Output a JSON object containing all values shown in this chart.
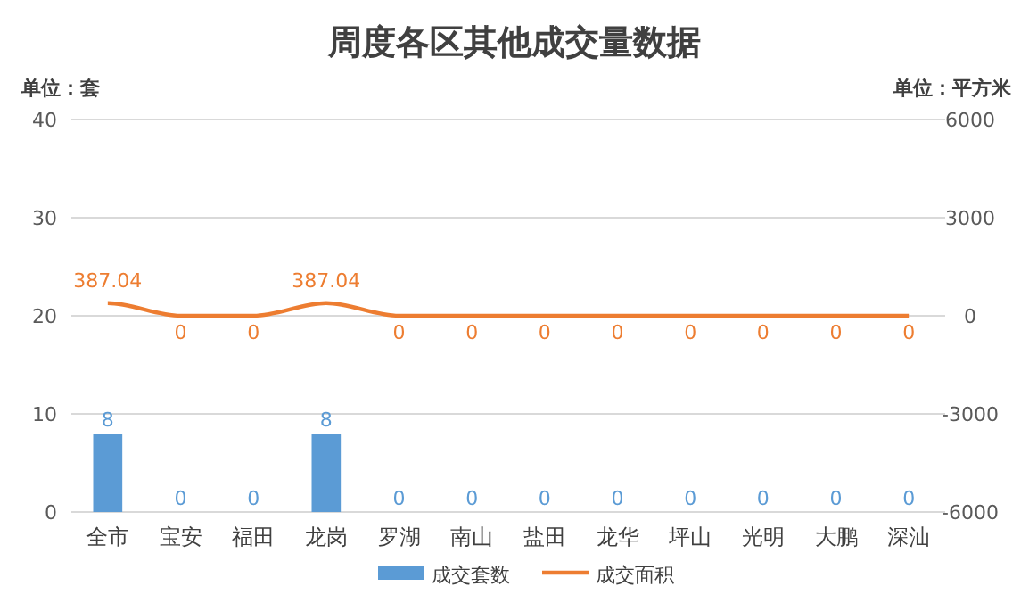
{
  "chart_data": {
    "type": "bar",
    "title": "周度各区其他成交量数据",
    "ylabel": "单位：套",
    "y2label": "单位：平方米",
    "categories": [
      "全市",
      "宝安",
      "福田",
      "龙岗",
      "罗湖",
      "南山",
      "盐田",
      "龙华",
      "坪山",
      "光明",
      "大鹏",
      "深汕"
    ],
    "series": [
      {
        "name": "成交套数",
        "color": "#5b9bd5",
        "values": [
          8,
          0,
          0,
          8,
          0,
          0,
          0,
          0,
          0,
          0,
          0,
          0
        ]
      },
      {
        "name": "成交面积",
        "type": "line",
        "axis": "y2",
        "color": "#ed7d31",
        "values": [
          387.04,
          0,
          0,
          387.04,
          0,
          0,
          0,
          0,
          0,
          0,
          0,
          0
        ]
      }
    ],
    "ylim": [
      0,
      40
    ],
    "yticks": [
      0,
      10,
      20,
      30,
      40
    ],
    "y2lim": [
      -6000,
      6000
    ],
    "y2ticks": [
      -6000,
      -3000,
      0,
      3000,
      6000
    ],
    "data_labels": true,
    "grid": "y",
    "legend": "bottom",
    "marker": "none",
    "line_style": "solid"
  }
}
